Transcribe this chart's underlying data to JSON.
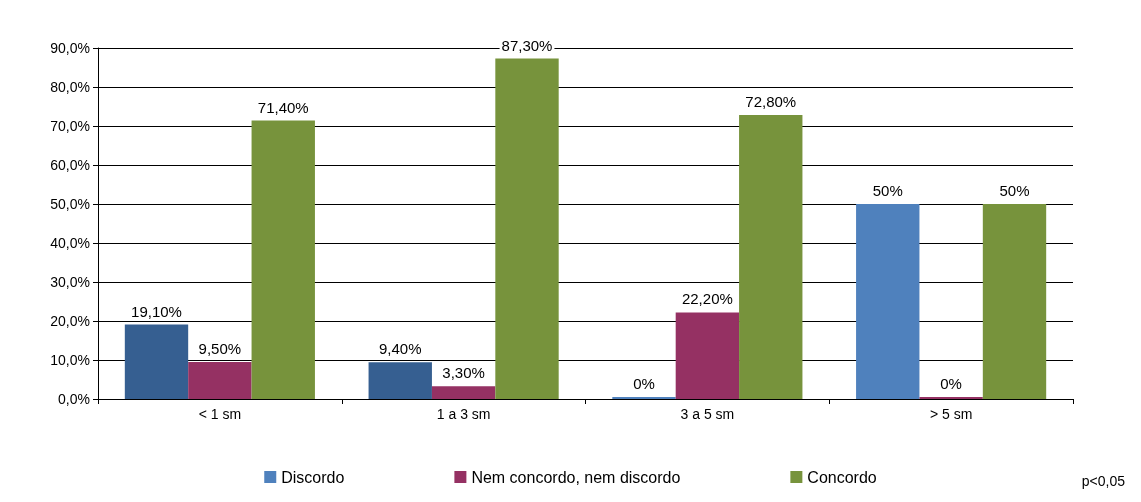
{
  "chart_data": {
    "type": "bar",
    "categories": [
      "< 1 sm",
      "1 a 3 sm",
      "3 a 5 sm",
      "> 5 sm"
    ],
    "series": [
      {
        "name": "Discordo",
        "color": "#4f81bd",
        "colors": [
          "#365f91",
          "#365f91",
          "#4f81bd",
          "#4f81bd"
        ],
        "values": [
          19.1,
          9.4,
          0,
          50
        ],
        "value_labels": [
          "19,10%",
          "9,40%",
          "0%",
          "50%"
        ]
      },
      {
        "name": "Nem concordo, nem discordo",
        "color": "#953163",
        "values": [
          9.5,
          3.3,
          22.2,
          0
        ],
        "value_labels": [
          "9,50%",
          "3,30%",
          "22,20%",
          "0%"
        ]
      },
      {
        "name": "Concordo",
        "color": "#77933c",
        "values": [
          71.4,
          87.3,
          72.8,
          50
        ],
        "value_labels": [
          "71,40%",
          "87,30%",
          "72,80%",
          "50%"
        ]
      }
    ],
    "ylim": [
      0,
      90
    ],
    "yticks": [
      {
        "value": 0,
        "label": "0,0%"
      },
      {
        "value": 10,
        "label": "10,0%"
      },
      {
        "value": 20,
        "label": "20,0%"
      },
      {
        "value": 30,
        "label": "30,0%"
      },
      {
        "value": 40,
        "label": "40,0%"
      },
      {
        "value": 50,
        "label": "50,0%"
      },
      {
        "value": 60,
        "label": "60,0%"
      },
      {
        "value": 70,
        "label": "70,0%"
      },
      {
        "value": 80,
        "label": "80,0%"
      },
      {
        "value": 90,
        "label": "90,0%"
      }
    ],
    "grid": "y",
    "legend": "bottom",
    "annotations": [
      "p<0,05"
    ]
  }
}
